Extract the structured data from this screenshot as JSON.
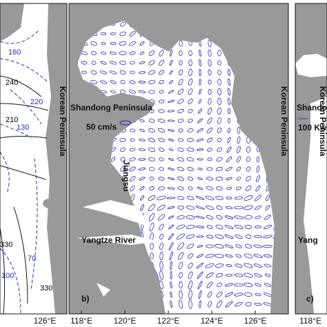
{
  "panel_a": {
    "contour_labels": [
      "160",
      "240",
      "220",
      "210",
      "130",
      "330",
      "70",
      "100",
      "330"
    ],
    "region_label": "Korean Peninsula",
    "x_tick_labels": [
      "126°E"
    ]
  },
  "panel_b": {
    "panel_label": "b)",
    "region_labels": [
      "Shandong Peninsula",
      "Jiangsu",
      "Korean Peninsula",
      "Yangtze River"
    ],
    "scale_label": "50 cm/s",
    "x_tick_labels": [
      "118°E",
      "120°E",
      "122°E",
      "124°E",
      "126°E"
    ]
  },
  "panel_c": {
    "panel_label": "c)",
    "region_labels": [
      "Shando",
      "Korean Peninsula",
      "Yang"
    ],
    "scale_label": "100 Kw",
    "x_tick_labels": [
      "118°E"
    ]
  }
}
